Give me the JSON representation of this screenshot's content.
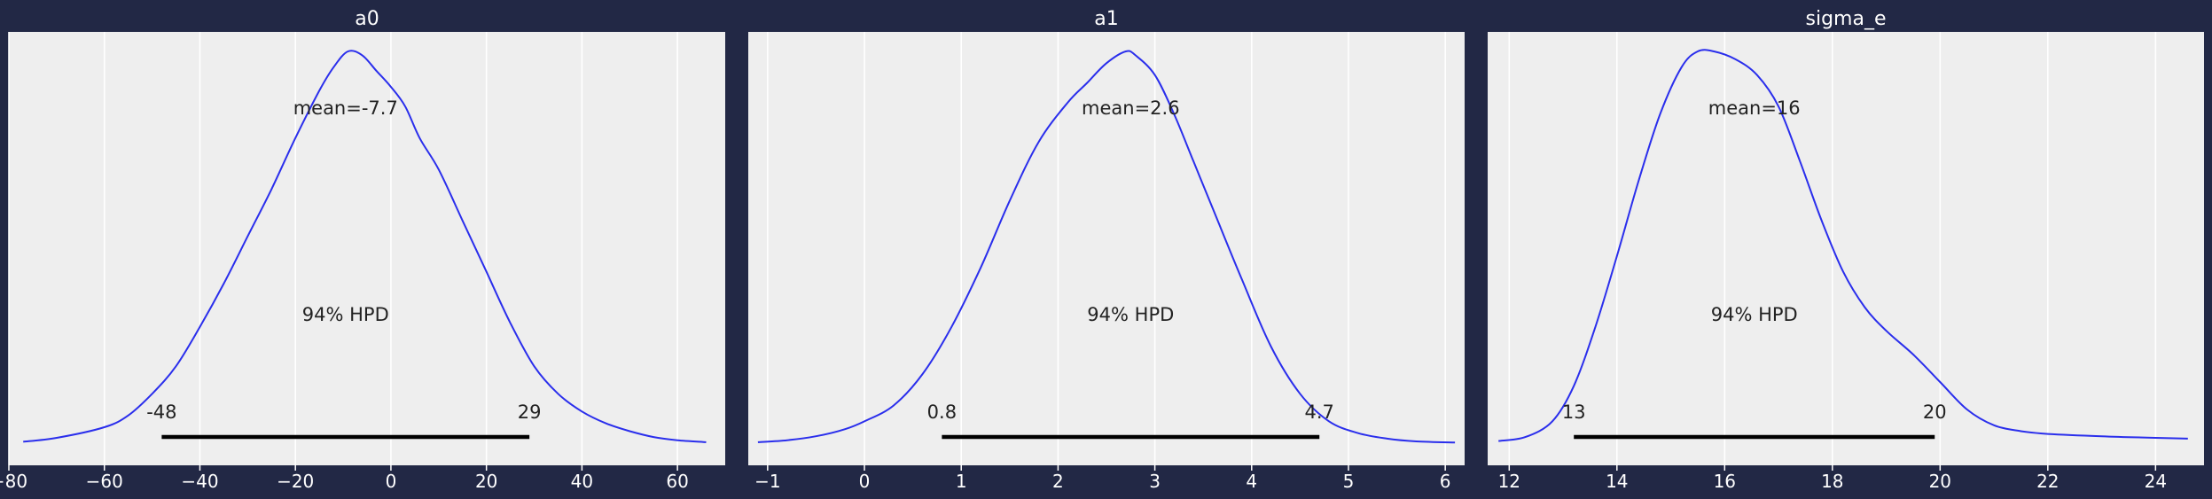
{
  "chart_data": [
    {
      "type": "line",
      "title": "a0",
      "xlim": [
        -80,
        70
      ],
      "xticks": [
        -80,
        -60,
        -40,
        -20,
        0,
        20,
        40,
        60
      ],
      "tick_labels": [
        "−80",
        "−60",
        "−40",
        "−20",
        "0",
        "20",
        "40",
        "60"
      ],
      "mean_label": "mean=-7.7",
      "hpd_label": "94% HPD",
      "hpd_low": -48,
      "hpd_high": 29,
      "hpd_low_label": "-48",
      "hpd_high_label": "29",
      "density": {
        "x": [
          -77,
          -70,
          -60,
          -55,
          -50,
          -45,
          -40,
          -35,
          -30,
          -25,
          -20,
          -15,
          -12,
          -9,
          -6,
          -3,
          0,
          3,
          6,
          10,
          15,
          20,
          25,
          30,
          35,
          40,
          45,
          50,
          55,
          60,
          66
        ],
        "y": [
          0.008,
          0.018,
          0.045,
          0.075,
          0.13,
          0.2,
          0.3,
          0.41,
          0.53,
          0.65,
          0.78,
          0.9,
          0.96,
          1.0,
          0.99,
          0.95,
          0.91,
          0.86,
          0.78,
          0.7,
          0.57,
          0.44,
          0.31,
          0.2,
          0.13,
          0.085,
          0.055,
          0.035,
          0.02,
          0.012,
          0.007
        ]
      },
      "color": "#2a2eec",
      "grid": true
    },
    {
      "type": "line",
      "title": "a1",
      "xlim": [
        -1.2,
        6.2
      ],
      "xticks": [
        -1,
        0,
        1,
        2,
        3,
        4,
        5,
        6
      ],
      "tick_labels": [
        "−1",
        "0",
        "1",
        "2",
        "3",
        "4",
        "5",
        "6"
      ],
      "mean_label": "mean=2.6",
      "hpd_label": "94% HPD",
      "hpd_low": 0.8,
      "hpd_high": 4.7,
      "hpd_low_label": "0.8",
      "hpd_high_label": "4.7",
      "density": {
        "x": [
          -1.1,
          -0.8,
          -0.5,
          -0.2,
          0.0,
          0.3,
          0.6,
          0.9,
          1.2,
          1.5,
          1.8,
          2.1,
          2.3,
          2.5,
          2.7,
          2.8,
          3.0,
          3.2,
          3.4,
          3.6,
          3.9,
          4.2,
          4.5,
          4.8,
          5.1,
          5.4,
          5.7,
          6.1
        ],
        "y": [
          0.007,
          0.012,
          0.022,
          0.04,
          0.06,
          0.1,
          0.18,
          0.3,
          0.45,
          0.62,
          0.77,
          0.87,
          0.92,
          0.97,
          1.0,
          0.99,
          0.94,
          0.84,
          0.72,
          0.6,
          0.42,
          0.25,
          0.13,
          0.06,
          0.03,
          0.016,
          0.009,
          0.006
        ]
      },
      "color": "#2a2eec",
      "grid": true
    },
    {
      "type": "line",
      "title": "sigma_e",
      "xlim": [
        11.6,
        24.9
      ],
      "xticks": [
        12,
        14,
        16,
        18,
        20,
        22,
        24
      ],
      "tick_labels": [
        "12",
        "14",
        "16",
        "18",
        "20",
        "22",
        "24"
      ],
      "mean_label": "mean=16",
      "hpd_label": "94% HPD",
      "hpd_low": 13.2,
      "hpd_high": 19.9,
      "hpd_low_label": "13",
      "hpd_high_label": "20",
      "density": {
        "x": [
          11.8,
          12.3,
          12.8,
          13.2,
          13.6,
          14.0,
          14.4,
          14.8,
          15.2,
          15.5,
          15.8,
          16.2,
          16.6,
          17.0,
          17.4,
          17.8,
          18.2,
          18.6,
          19.0,
          19.5,
          20.0,
          20.5,
          21.0,
          21.5,
          22.0,
          23.0,
          24.0,
          24.6
        ],
        "y": [
          0.01,
          0.02,
          0.06,
          0.15,
          0.3,
          0.48,
          0.67,
          0.84,
          0.96,
          1.0,
          1.0,
          0.98,
          0.94,
          0.86,
          0.72,
          0.57,
          0.44,
          0.35,
          0.29,
          0.23,
          0.16,
          0.09,
          0.05,
          0.035,
          0.028,
          0.022,
          0.018,
          0.016
        ]
      },
      "color": "#2a2eec",
      "grid": true
    }
  ]
}
